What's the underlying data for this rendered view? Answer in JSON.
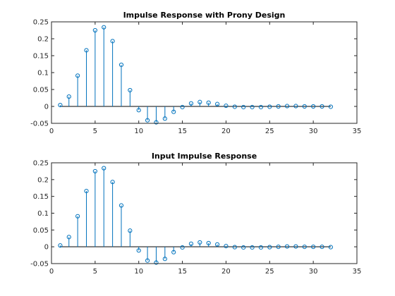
{
  "chart_data": [
    {
      "type": "stem",
      "title": "Impulse Response with Prony Design",
      "xlabel": "",
      "ylabel": "",
      "xlim": [
        0,
        35
      ],
      "ylim": [
        -0.05,
        0.25
      ],
      "xticks": [
        "0",
        "5",
        "10",
        "15",
        "20",
        "25",
        "30",
        "35"
      ],
      "yticks": [
        "-0.05",
        "0",
        "0.05",
        "0.1",
        "0.15",
        "0.2",
        "0.25"
      ],
      "grid": false,
      "baseline": 0,
      "x": [
        1,
        2,
        3,
        4,
        5,
        6,
        7,
        8,
        9,
        10,
        11,
        12,
        13,
        14,
        15,
        16,
        17,
        18,
        19,
        20,
        21,
        22,
        23,
        24,
        25,
        26,
        27,
        28,
        29,
        30,
        31,
        32
      ],
      "values": [
        0.004,
        0.029,
        0.091,
        0.166,
        0.225,
        0.234,
        0.193,
        0.123,
        0.048,
        -0.011,
        -0.041,
        -0.047,
        -0.036,
        -0.016,
        -0.002,
        0.009,
        0.013,
        0.011,
        0.007,
        0.002,
        -0.001,
        -0.002,
        -0.002,
        -0.002,
        -0.001,
        0.0,
        0.001,
        0.001,
        0.0,
        0.0,
        0.0,
        -0.001
      ],
      "color": "#0072bd"
    },
    {
      "type": "stem",
      "title": "Input Impulse Response",
      "xlabel": "",
      "ylabel": "",
      "xlim": [
        0,
        35
      ],
      "ylim": [
        -0.05,
        0.25
      ],
      "xticks": [
        "0",
        "5",
        "10",
        "15",
        "20",
        "25",
        "30",
        "35"
      ],
      "yticks": [
        "-0.05",
        "0",
        "0.05",
        "0.1",
        "0.15",
        "0.2",
        "0.25"
      ],
      "grid": false,
      "baseline": 0,
      "x": [
        1,
        2,
        3,
        4,
        5,
        6,
        7,
        8,
        9,
        10,
        11,
        12,
        13,
        14,
        15,
        16,
        17,
        18,
        19,
        20,
        21,
        22,
        23,
        24,
        25,
        26,
        27,
        28,
        29,
        30,
        31,
        32
      ],
      "values": [
        0.004,
        0.029,
        0.091,
        0.166,
        0.225,
        0.234,
        0.193,
        0.123,
        0.048,
        -0.011,
        -0.041,
        -0.047,
        -0.036,
        -0.016,
        -0.002,
        0.009,
        0.013,
        0.011,
        0.007,
        0.002,
        -0.001,
        -0.002,
        -0.002,
        -0.002,
        -0.001,
        0.0,
        0.001,
        0.001,
        0.0,
        0.0,
        0.0,
        -0.001
      ],
      "color": "#0072bd"
    }
  ]
}
